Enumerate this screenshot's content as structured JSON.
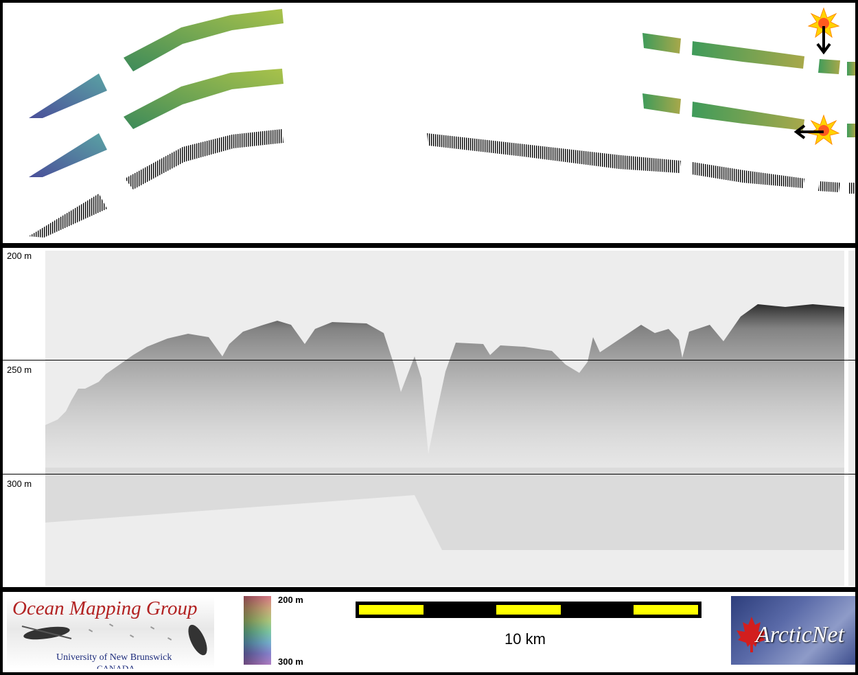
{
  "profile": {
    "depth_labels": [
      "200 m",
      "250 m",
      "300 m"
    ]
  },
  "footer": {
    "logo_title": "Ocean Mapping Group",
    "logo_university": "University of New Brunswick",
    "logo_country": "CANADA",
    "colorbar_top": "200 m",
    "colorbar_bottom": "300 m",
    "scale_label": "10 km",
    "partner_logo": "ArcticNet"
  },
  "colors": {
    "scale_yellow": "#ffff00",
    "logo_red": "#b22222",
    "logo_blue": "#1b2a7a"
  }
}
